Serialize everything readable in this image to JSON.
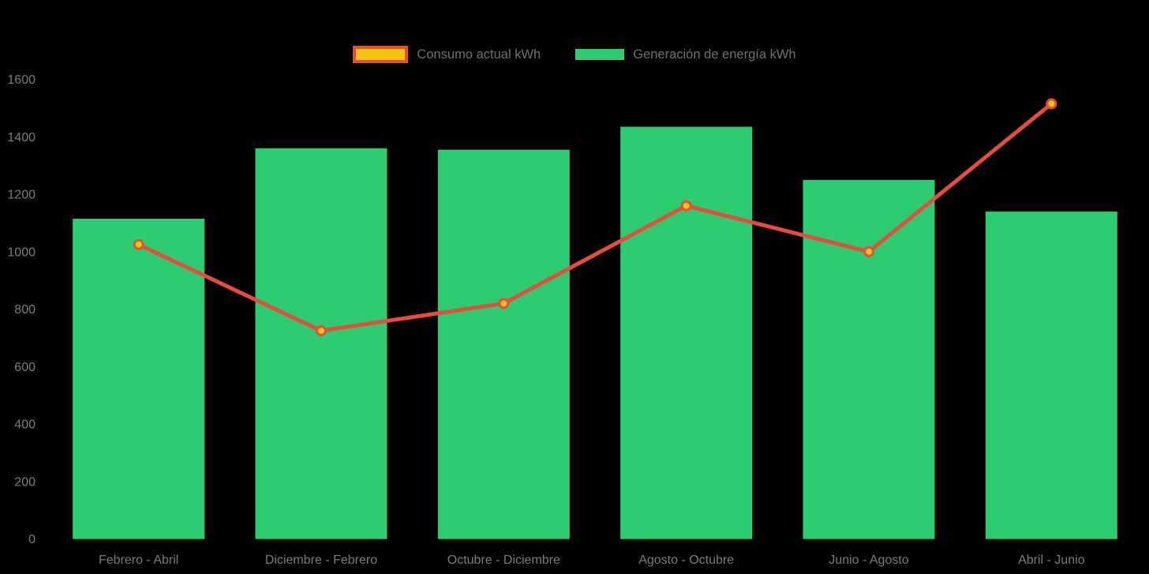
{
  "page": {
    "background_color": "#000000",
    "axis_text_color": "#7b7b7b",
    "legend_text_color": "#6f6f6f"
  },
  "legend": {
    "items": [
      {
        "id": "consumo",
        "label": "Consumo actual kWh",
        "swatch_fill": "#f1c40f",
        "swatch_border_color": "#e74c3c",
        "swatch_border_width": 4
      },
      {
        "id": "generacion",
        "label": "Generación de energía kWh",
        "swatch_fill": "#2ecc71",
        "swatch_border_color": "#2ecc71",
        "swatch_border_width": 0
      }
    ]
  },
  "chart_data": {
    "type": "bar",
    "subtype": "bar-line-combo",
    "title": "",
    "xlabel": "",
    "ylabel": "",
    "categories": [
      "Febrero - Abril",
      "Diciembre - Febrero",
      "Octubre - Diciembre",
      "Agosto - Octubre",
      "Junio - Agosto",
      "Abril - Junio"
    ],
    "series": [
      {
        "name": "Generación de energía kWh",
        "type": "bar",
        "color": "#2ecc71",
        "values": [
          1115,
          1360,
          1355,
          1435,
          1250,
          1140
        ]
      },
      {
        "name": "Consumo actual kWh",
        "type": "line",
        "color": "#e74c3c",
        "point_fill": "#f1c40f",
        "point_border": "#e74c3c",
        "values": [
          1025,
          725,
          820,
          1160,
          1000,
          1515
        ]
      }
    ],
    "ylim": [
      0,
      1600
    ],
    "ytick_step": 200,
    "yticks": [
      0,
      200,
      400,
      600,
      800,
      1000,
      1200,
      1400,
      1600
    ],
    "grid": false,
    "legend_position": "top-center"
  }
}
